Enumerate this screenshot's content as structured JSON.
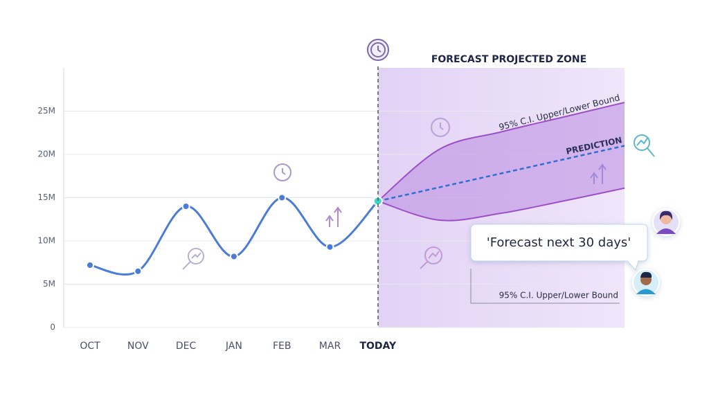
{
  "chart_data": {
    "type": "forecast-line",
    "title": "FORECAST PROJECTED ZONE",
    "categories": [
      "OCT",
      "NOV",
      "DEC",
      "JAN",
      "FEB",
      "MAR",
      "TODAY"
    ],
    "values": [
      7200000,
      6500000,
      14000000,
      8200000,
      15000000,
      9300000,
      14600000
    ],
    "color": "#4a7bd8",
    "ylim": [
      0,
      30000000
    ],
    "yticks": [
      0,
      {
        "value": 5000000,
        "label": "5M"
      },
      {
        "value": 10000000,
        "label": "10M"
      },
      {
        "value": 15000000,
        "label": "15M"
      },
      {
        "value": 20000000,
        "label": "20M"
      },
      {
        "value": 25000000,
        "label": "25M"
      }
    ],
    "grid": true,
    "forecast": {
      "bound_label": "95% C.I. Upper/Lower Bound",
      "prediction_label": "PREDICTION",
      "band_color": "#9b4fc6",
      "prediction_color": "#2f6fd0",
      "upper": [
        14600000,
        20600000,
        22600000,
        24300000,
        26000000
      ],
      "prediction": [
        14600000,
        16200000,
        17800000,
        19400000,
        21000000
      ],
      "lower": [
        14600000,
        12400000,
        13200000,
        14600000,
        16100000
      ]
    },
    "callout": "'Forecast next 30 days'",
    "callout_note": "95% C.I. Upper/Lower Bound"
  }
}
